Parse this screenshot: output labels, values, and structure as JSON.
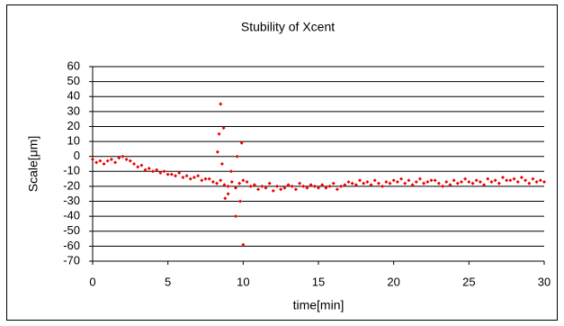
{
  "chart_data": {
    "type": "scatter",
    "title": "Stubility of Xcent",
    "xlabel": "time[min]",
    "ylabel": "Scale[μm]",
    "color": "#ee0000",
    "grid": true,
    "xlim": [
      0,
      30
    ],
    "xticks": [
      0,
      5,
      10,
      15,
      20,
      25,
      30
    ],
    "ylim": [
      -70,
      60
    ],
    "yticks": [
      60,
      50,
      40,
      30,
      20,
      10,
      0,
      -10,
      -20,
      -30,
      -40,
      -50,
      -60,
      -70
    ],
    "x": [
      0,
      0.25,
      0.5,
      0.75,
      1,
      1.25,
      1.5,
      1.75,
      2,
      2.25,
      2.5,
      2.75,
      3,
      3.25,
      3.5,
      3.75,
      4,
      4.25,
      4.5,
      4.75,
      5,
      5.25,
      5.5,
      5.75,
      6,
      6.25,
      6.5,
      6.75,
      7,
      7.25,
      7.5,
      7.75,
      8,
      8.25,
      8.5,
      8.75,
      9,
      9.25,
      9.5,
      9.75,
      10,
      10.25,
      10.5,
      10.75,
      11,
      11.25,
      11.5,
      11.75,
      12,
      12.25,
      12.5,
      12.75,
      13,
      13.25,
      13.5,
      13.75,
      14,
      14.25,
      14.5,
      14.75,
      15,
      15.25,
      15.5,
      15.75,
      16,
      16.25,
      16.5,
      16.75,
      17,
      17.25,
      17.5,
      17.75,
      18,
      18.25,
      18.5,
      18.75,
      19,
      19.25,
      19.5,
      19.75,
      20,
      20.25,
      20.5,
      20.75,
      21,
      21.25,
      21.5,
      21.75,
      22,
      22.25,
      22.5,
      22.75,
      23,
      23.25,
      23.5,
      23.75,
      24,
      24.25,
      24.5,
      24.75,
      25,
      25.25,
      25.5,
      25.75,
      26,
      26.25,
      26.5,
      26.75,
      27,
      27.25,
      27.5,
      27.75,
      28,
      28.25,
      28.5,
      28.75,
      29,
      29.25,
      29.5,
      29.75,
      30,
      8.5,
      8.7,
      8.4,
      8.3,
      8.6,
      8.8,
      9.5,
      9.8,
      9.9,
      10,
      9.6,
      9.2,
      9.0
    ],
    "values": [
      -2,
      -4,
      -3,
      -5,
      -3,
      -2,
      -4,
      -1,
      0,
      -2,
      -3,
      -5,
      -7,
      -6,
      -9,
      -8,
      -10,
      -9,
      -11,
      -10,
      -12,
      -12,
      -13,
      -11,
      -14,
      -13,
      -15,
      -14,
      -13,
      -16,
      -15,
      -15,
      -17,
      -18,
      -16,
      -19,
      -20,
      -17,
      -21,
      -18,
      -16,
      -17,
      -20,
      -19,
      -22,
      -20,
      -21,
      -18,
      -23,
      -20,
      -22,
      -21,
      -19,
      -20,
      -22,
      -18,
      -20,
      -21,
      -19,
      -20,
      -21,
      -19,
      -21,
      -20,
      -18,
      -22,
      -20,
      -19,
      -17,
      -18,
      -19,
      -16,
      -18,
      -17,
      -19,
      -16,
      -18,
      -20,
      -17,
      -18,
      -16,
      -17,
      -15,
      -18,
      -16,
      -19,
      -17,
      -15,
      -18,
      -17,
      -16,
      -16,
      -18,
      -20,
      -17,
      -19,
      -16,
      -18,
      -17,
      -15,
      -17,
      -18,
      -16,
      -17,
      -19,
      -15,
      -17,
      -16,
      -18,
      -14,
      -16,
      -16,
      -15,
      -17,
      -14,
      -16,
      -18,
      -15,
      -17,
      -16,
      -17,
      35,
      19,
      15,
      3,
      -5,
      -28,
      -40,
      -30,
      9,
      -59,
      0,
      -10,
      -25
    ]
  }
}
